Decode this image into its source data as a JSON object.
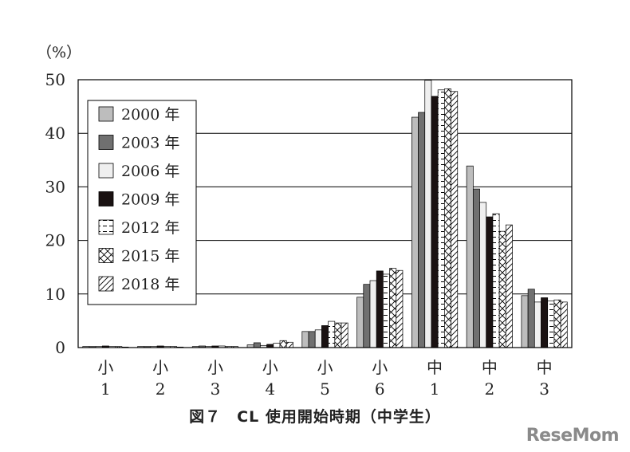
{
  "chart_data": {
    "type": "bar",
    "unit_label": "（%）",
    "ylim": [
      0,
      50
    ],
    "yticks": [
      0,
      10,
      20,
      30,
      40,
      50
    ],
    "grid": true,
    "legend_position": "top-left",
    "categories": [
      {
        "top": "小",
        "bottom": "1"
      },
      {
        "top": "小",
        "bottom": "2"
      },
      {
        "top": "小",
        "bottom": "3"
      },
      {
        "top": "小",
        "bottom": "4"
      },
      {
        "top": "小",
        "bottom": "5"
      },
      {
        "top": "小",
        "bottom": "6"
      },
      {
        "top": "中",
        "bottom": "1"
      },
      {
        "top": "中",
        "bottom": "2"
      },
      {
        "top": "中",
        "bottom": "3"
      }
    ],
    "series": [
      {
        "name": "2000 年",
        "fill": "#bdbdbd",
        "pattern": "solid",
        "values": [
          0.2,
          0.2,
          0.2,
          0.5,
          3.0,
          9.4,
          43.0,
          33.9,
          9.7
        ]
      },
      {
        "name": "2003 年",
        "fill": "#707070",
        "pattern": "solid",
        "values": [
          0.2,
          0.2,
          0.3,
          0.9,
          3.0,
          11.8,
          43.9,
          29.6,
          10.9
        ]
      },
      {
        "name": "2006 年",
        "fill": "#efefef",
        "pattern": "solid",
        "values": [
          0.2,
          0.2,
          0.2,
          0.4,
          3.3,
          12.5,
          49.9,
          27.1,
          8.5
        ]
      },
      {
        "name": "2009 年",
        "fill": "#1a1212",
        "pattern": "solid",
        "values": [
          0.3,
          0.3,
          0.3,
          0.6,
          4.1,
          14.3,
          46.9,
          24.4,
          9.3
        ]
      },
      {
        "name": "2012 年",
        "fill": "#ffffff",
        "pattern": "dash",
        "values": [
          0.2,
          0.2,
          0.3,
          0.8,
          4.9,
          13.7,
          48.1,
          25.0,
          8.7
        ]
      },
      {
        "name": "2015 年",
        "fill": "#ffffff",
        "pattern": "cross",
        "values": [
          0.2,
          0.2,
          0.2,
          1.3,
          4.6,
          14.8,
          48.3,
          21.7,
          8.9
        ]
      },
      {
        "name": "2018 年",
        "fill": "#ffffff",
        "pattern": "diag",
        "values": [
          0.1,
          0.1,
          0.2,
          1.0,
          4.6,
          14.4,
          47.8,
          22.9,
          8.5
        ]
      }
    ]
  },
  "caption": "図７　CL 使用開始時期（中学生）",
  "watermark": "ReseMom"
}
